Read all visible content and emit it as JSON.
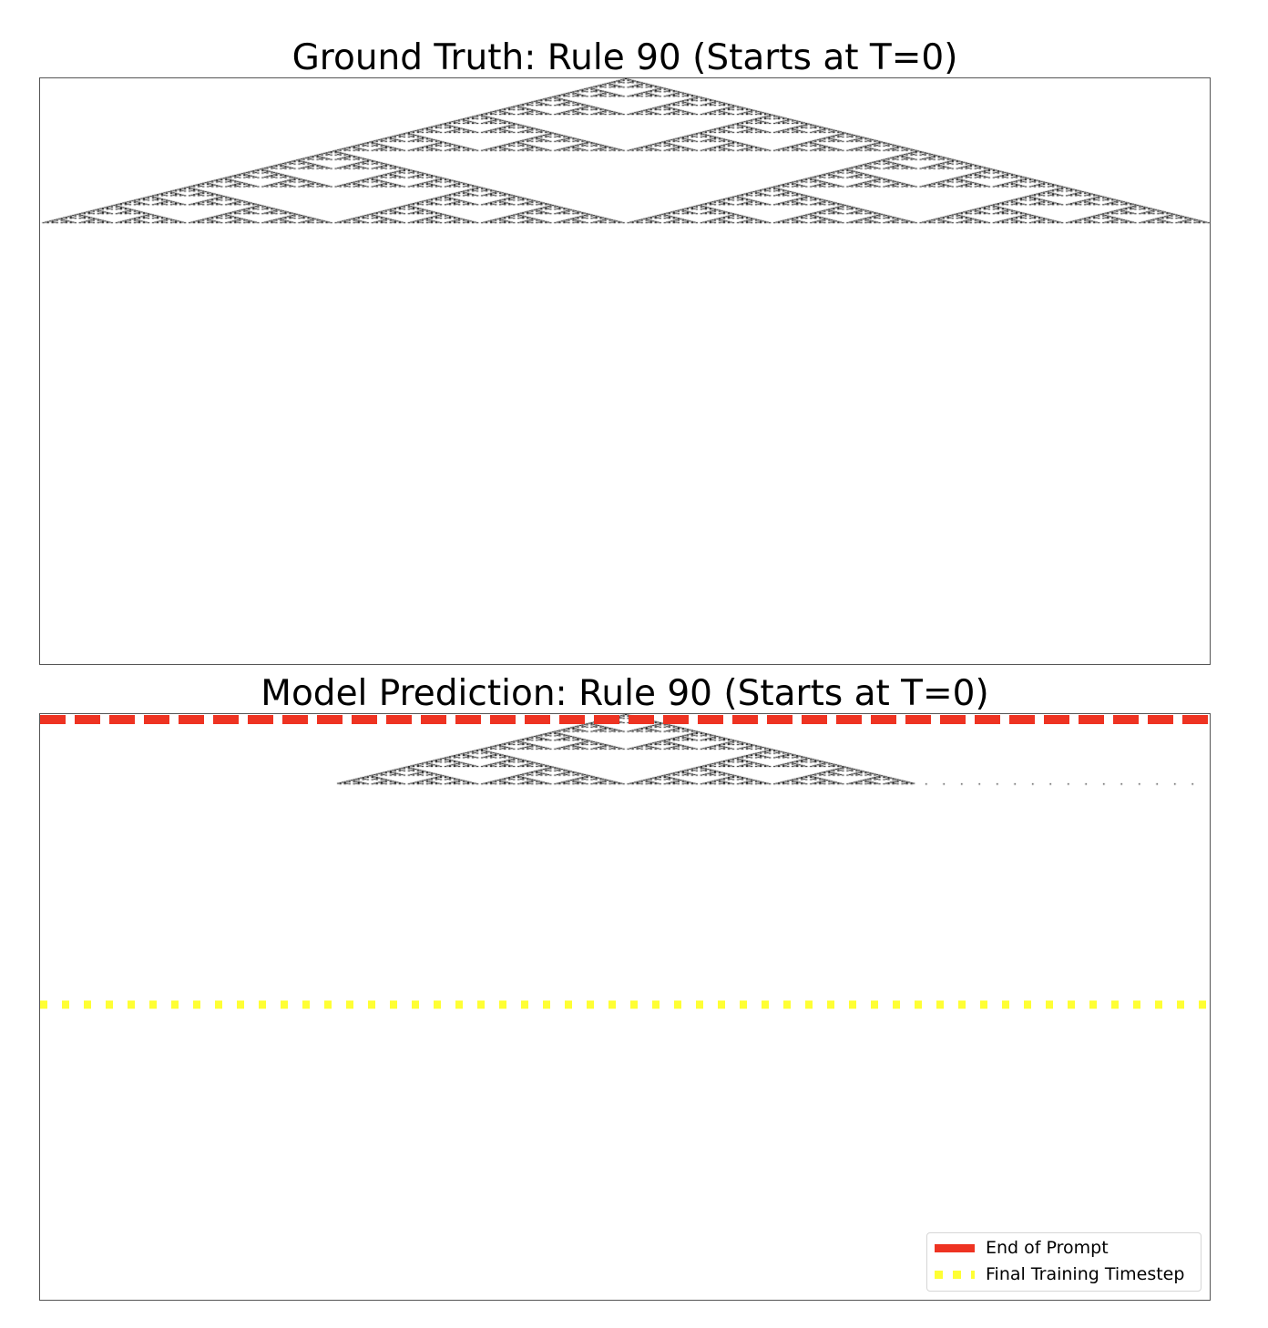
{
  "chart_data": [
    {
      "type": "heatmap",
      "title": "Ground Truth: Rule 90 (Starts at T=0)",
      "rule": 90,
      "start_timestep": 0,
      "cell_on_color": "#000000",
      "cell_off_color": "#ffffff",
      "grid": false,
      "axes_visible": false
    },
    {
      "type": "heatmap",
      "title": "Model Prediction: Rule 90 (Starts at T=0)",
      "rule": 90,
      "start_timestep": 0,
      "cell_on_color": "#000000",
      "cell_off_color": "#ffffff",
      "grid": false,
      "axes_visible": false,
      "legend_placement": "lower-right",
      "reference_lines": [
        {
          "label": "End of Prompt",
          "color": "#ee3322",
          "style": "dashed"
        },
        {
          "label": "Final Training Timestep",
          "color": "#ffff33",
          "style": "dotted"
        }
      ]
    }
  ]
}
